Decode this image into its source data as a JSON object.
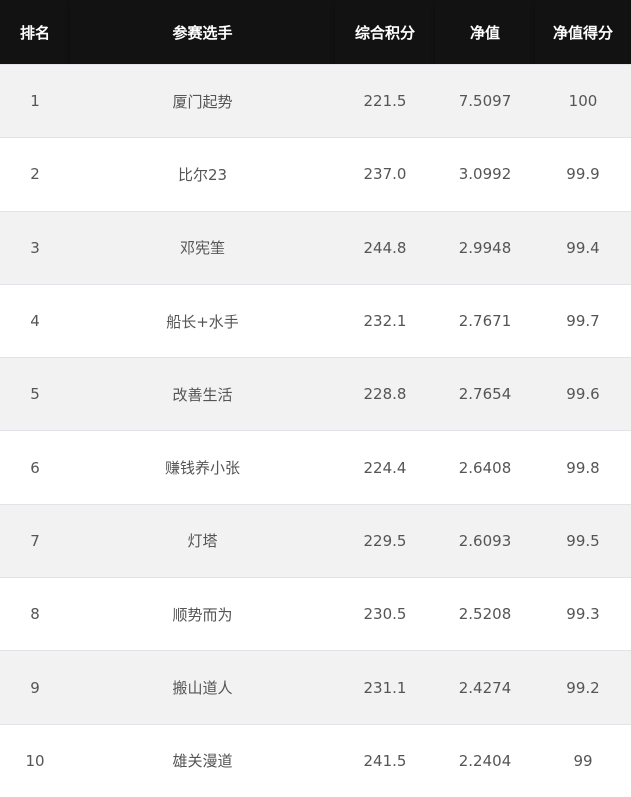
{
  "headers": [
    "排名",
    "参赛选手",
    "综合积分",
    "净值",
    "净值得分"
  ],
  "rows": [
    [
      "1",
      "厦门起势",
      "221.5",
      "7.5097",
      "100"
    ],
    [
      "2",
      "比尔23",
      "237.0",
      "3.0992",
      "99.9"
    ],
    [
      "3",
      "邓宪筀",
      "244.8",
      "2.9948",
      "99.4"
    ],
    [
      "4",
      "船长+水手",
      "232.1",
      "2.7671",
      "99.7"
    ],
    [
      "5",
      "改善生活",
      "228.8",
      "2.7654",
      "99.6"
    ],
    [
      "6",
      "赚钱养小张",
      "224.4",
      "2.6408",
      "99.8"
    ],
    [
      "7",
      "灯塔",
      "229.5",
      "2.6093",
      "99.5"
    ],
    [
      "8",
      "顺势而为",
      "230.5",
      "2.5208",
      "99.3"
    ],
    [
      "9",
      "搬山道人",
      "231.1",
      "2.4274",
      "99.2"
    ],
    [
      "10",
      "雄关漫道",
      "241.5",
      "2.2404",
      "99"
    ]
  ]
}
